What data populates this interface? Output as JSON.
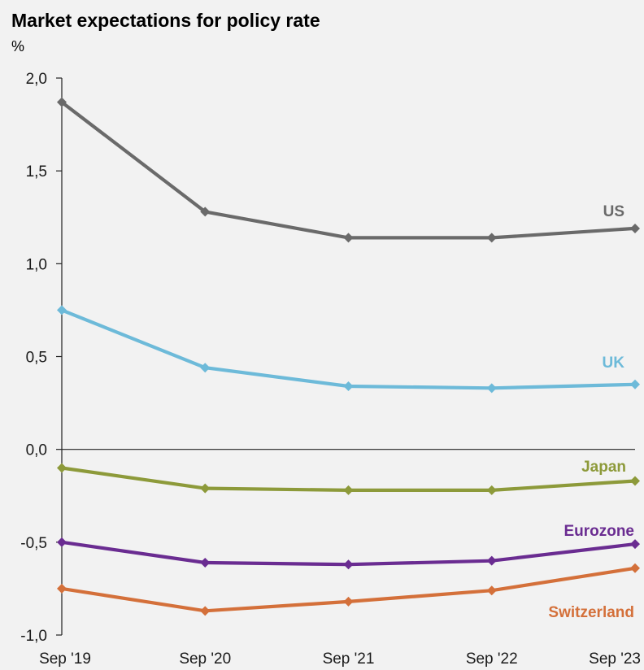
{
  "chart_data": {
    "type": "line",
    "title": "Market expectations for policy rate",
    "ylabel": "%",
    "xlabel": "",
    "categories": [
      "Sep '19",
      "Sep '20",
      "Sep '21",
      "Sep '22",
      "Sep '23"
    ],
    "ylim": [
      -1.0,
      2.0
    ],
    "yticks": [
      {
        "value": 2.0,
        "label": "2,0"
      },
      {
        "value": 1.5,
        "label": "1,5"
      },
      {
        "value": 1.0,
        "label": "1,0"
      },
      {
        "value": 0.5,
        "label": "0,5"
      },
      {
        "value": 0.0,
        "label": "0,0"
      },
      {
        "value": -0.5,
        "label": "-0,5"
      },
      {
        "value": -1.0,
        "label": "-1,0"
      }
    ],
    "grid": false,
    "series": [
      {
        "name": "US",
        "color": "#6a6a6a",
        "values": [
          1.87,
          1.28,
          1.14,
          1.14,
          1.19
        ]
      },
      {
        "name": "UK",
        "color": "#6dbad9",
        "values": [
          0.75,
          0.44,
          0.34,
          0.33,
          0.35
        ]
      },
      {
        "name": "Japan",
        "color": "#8d9a3a",
        "values": [
          -0.1,
          -0.21,
          -0.22,
          -0.22,
          -0.17
        ]
      },
      {
        "name": "Eurozone",
        "color": "#6a2c91",
        "values": [
          -0.5,
          -0.61,
          -0.62,
          -0.6,
          -0.51
        ]
      },
      {
        "name": "Switzerland",
        "color": "#d4703a",
        "values": [
          -0.75,
          -0.87,
          -0.82,
          -0.76,
          -0.64
        ]
      }
    ]
  }
}
